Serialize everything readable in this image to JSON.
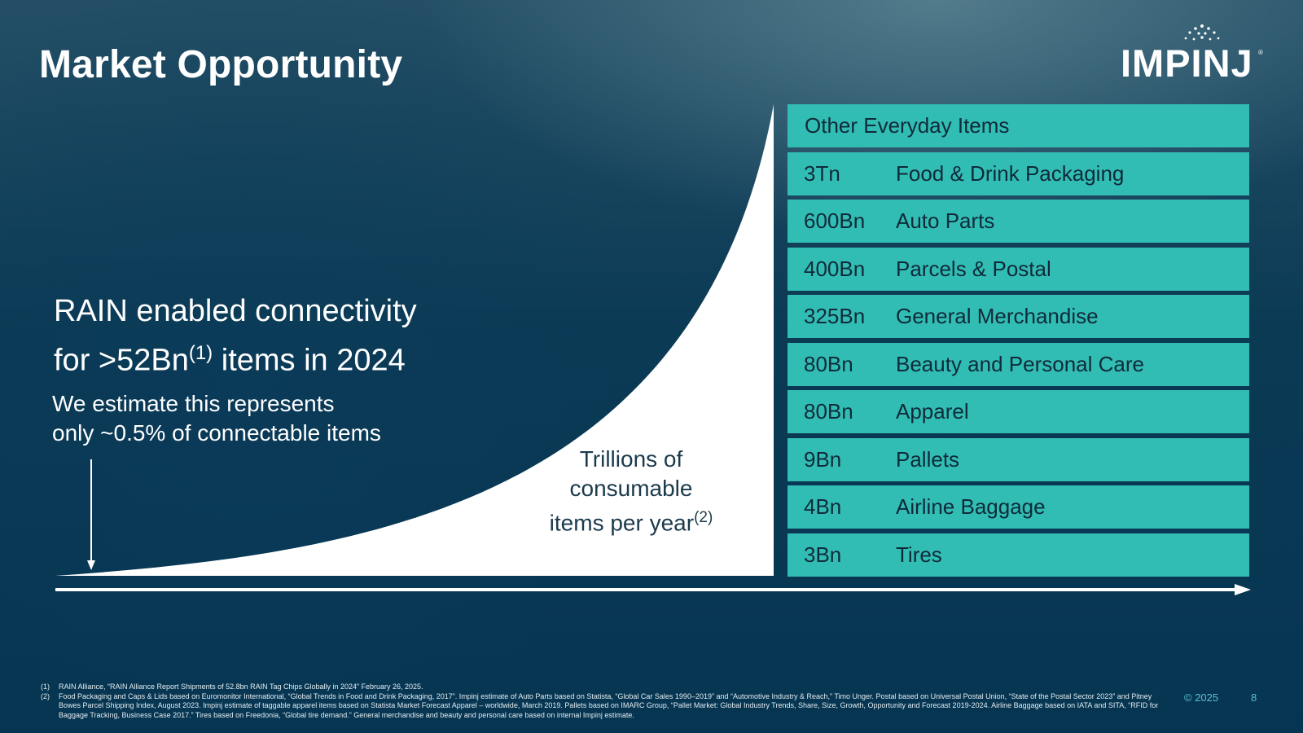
{
  "header": {
    "title": "Market Opportunity",
    "logo_text": "IMPINJ",
    "logo_reg": "®"
  },
  "headline": {
    "line1": "RAIN enabled connectivity",
    "line2_pre": "for >52Bn",
    "line2_sup": "(1)",
    "line2_post": " items in 2024"
  },
  "subtext": {
    "line1": "We estimate this represents",
    "line2": "only ~0.5% of connectable items"
  },
  "curve_label": {
    "line1": "Trillions of",
    "line2": "consumable",
    "line3": "items per year",
    "sup": "(2)"
  },
  "table": {
    "header": "Other Everyday Items",
    "rows": [
      {
        "value": "3Tn",
        "category": "Food & Drink Packaging"
      },
      {
        "value": "600Bn",
        "category": "Auto Parts"
      },
      {
        "value": "400Bn",
        "category": "Parcels & Postal"
      },
      {
        "value": "325Bn",
        "category": "General Merchandise"
      },
      {
        "value": "80Bn",
        "category": "Beauty and Personal Care"
      },
      {
        "value": "80Bn",
        "category": "Apparel"
      },
      {
        "value": "9Bn",
        "category": "Pallets"
      },
      {
        "value": "4Bn",
        "category": "Airline Baggage"
      },
      {
        "value": "3Bn",
        "category": "Tires"
      }
    ]
  },
  "footnotes": [
    {
      "num": "(1)",
      "text": "RAIN Alliance, “RAIN Alliance Report Shipments of 52.8bn RAIN Tag Chips Globally in 2024” February 26, 2025."
    },
    {
      "num": "(2)",
      "text": "Food Packaging and Caps & Lids based on Euromonitor International, “Global Trends in Food and Drink Packaging, 2017”. Impinj estimate of Auto Parts based on Statista, “Global Car Sales 1990–2019” and “Automotive Industry & Reach,” Timo Unger. Postal based on Universal Postal Union, “State of the Postal Sector 2023” and Pitney Bowes Parcel Shipping Index, August 2023. Impinj estimate of taggable apparel items based on Statista Market Forecast Apparel – worldwide, March 2019. Pallets based on IMARC Group, “Pallet Market: Global Industry Trends, Share, Size, Growth, Opportunity and Forecast 2019-2024. Airline Baggage based on IATA and SITA, “RFID for Baggage Tracking, Business Case 2017.” Tires based on Freedonia, “Global tire demand.” General merchandise and beauty and personal care based on internal Impinj estimate."
    }
  ],
  "copyright": "©  2025",
  "page_number": "8",
  "colors": {
    "teal_row": "#32bdb4",
    "curve_fill": "#ffffff",
    "footer_accent": "#5dbfd0"
  }
}
